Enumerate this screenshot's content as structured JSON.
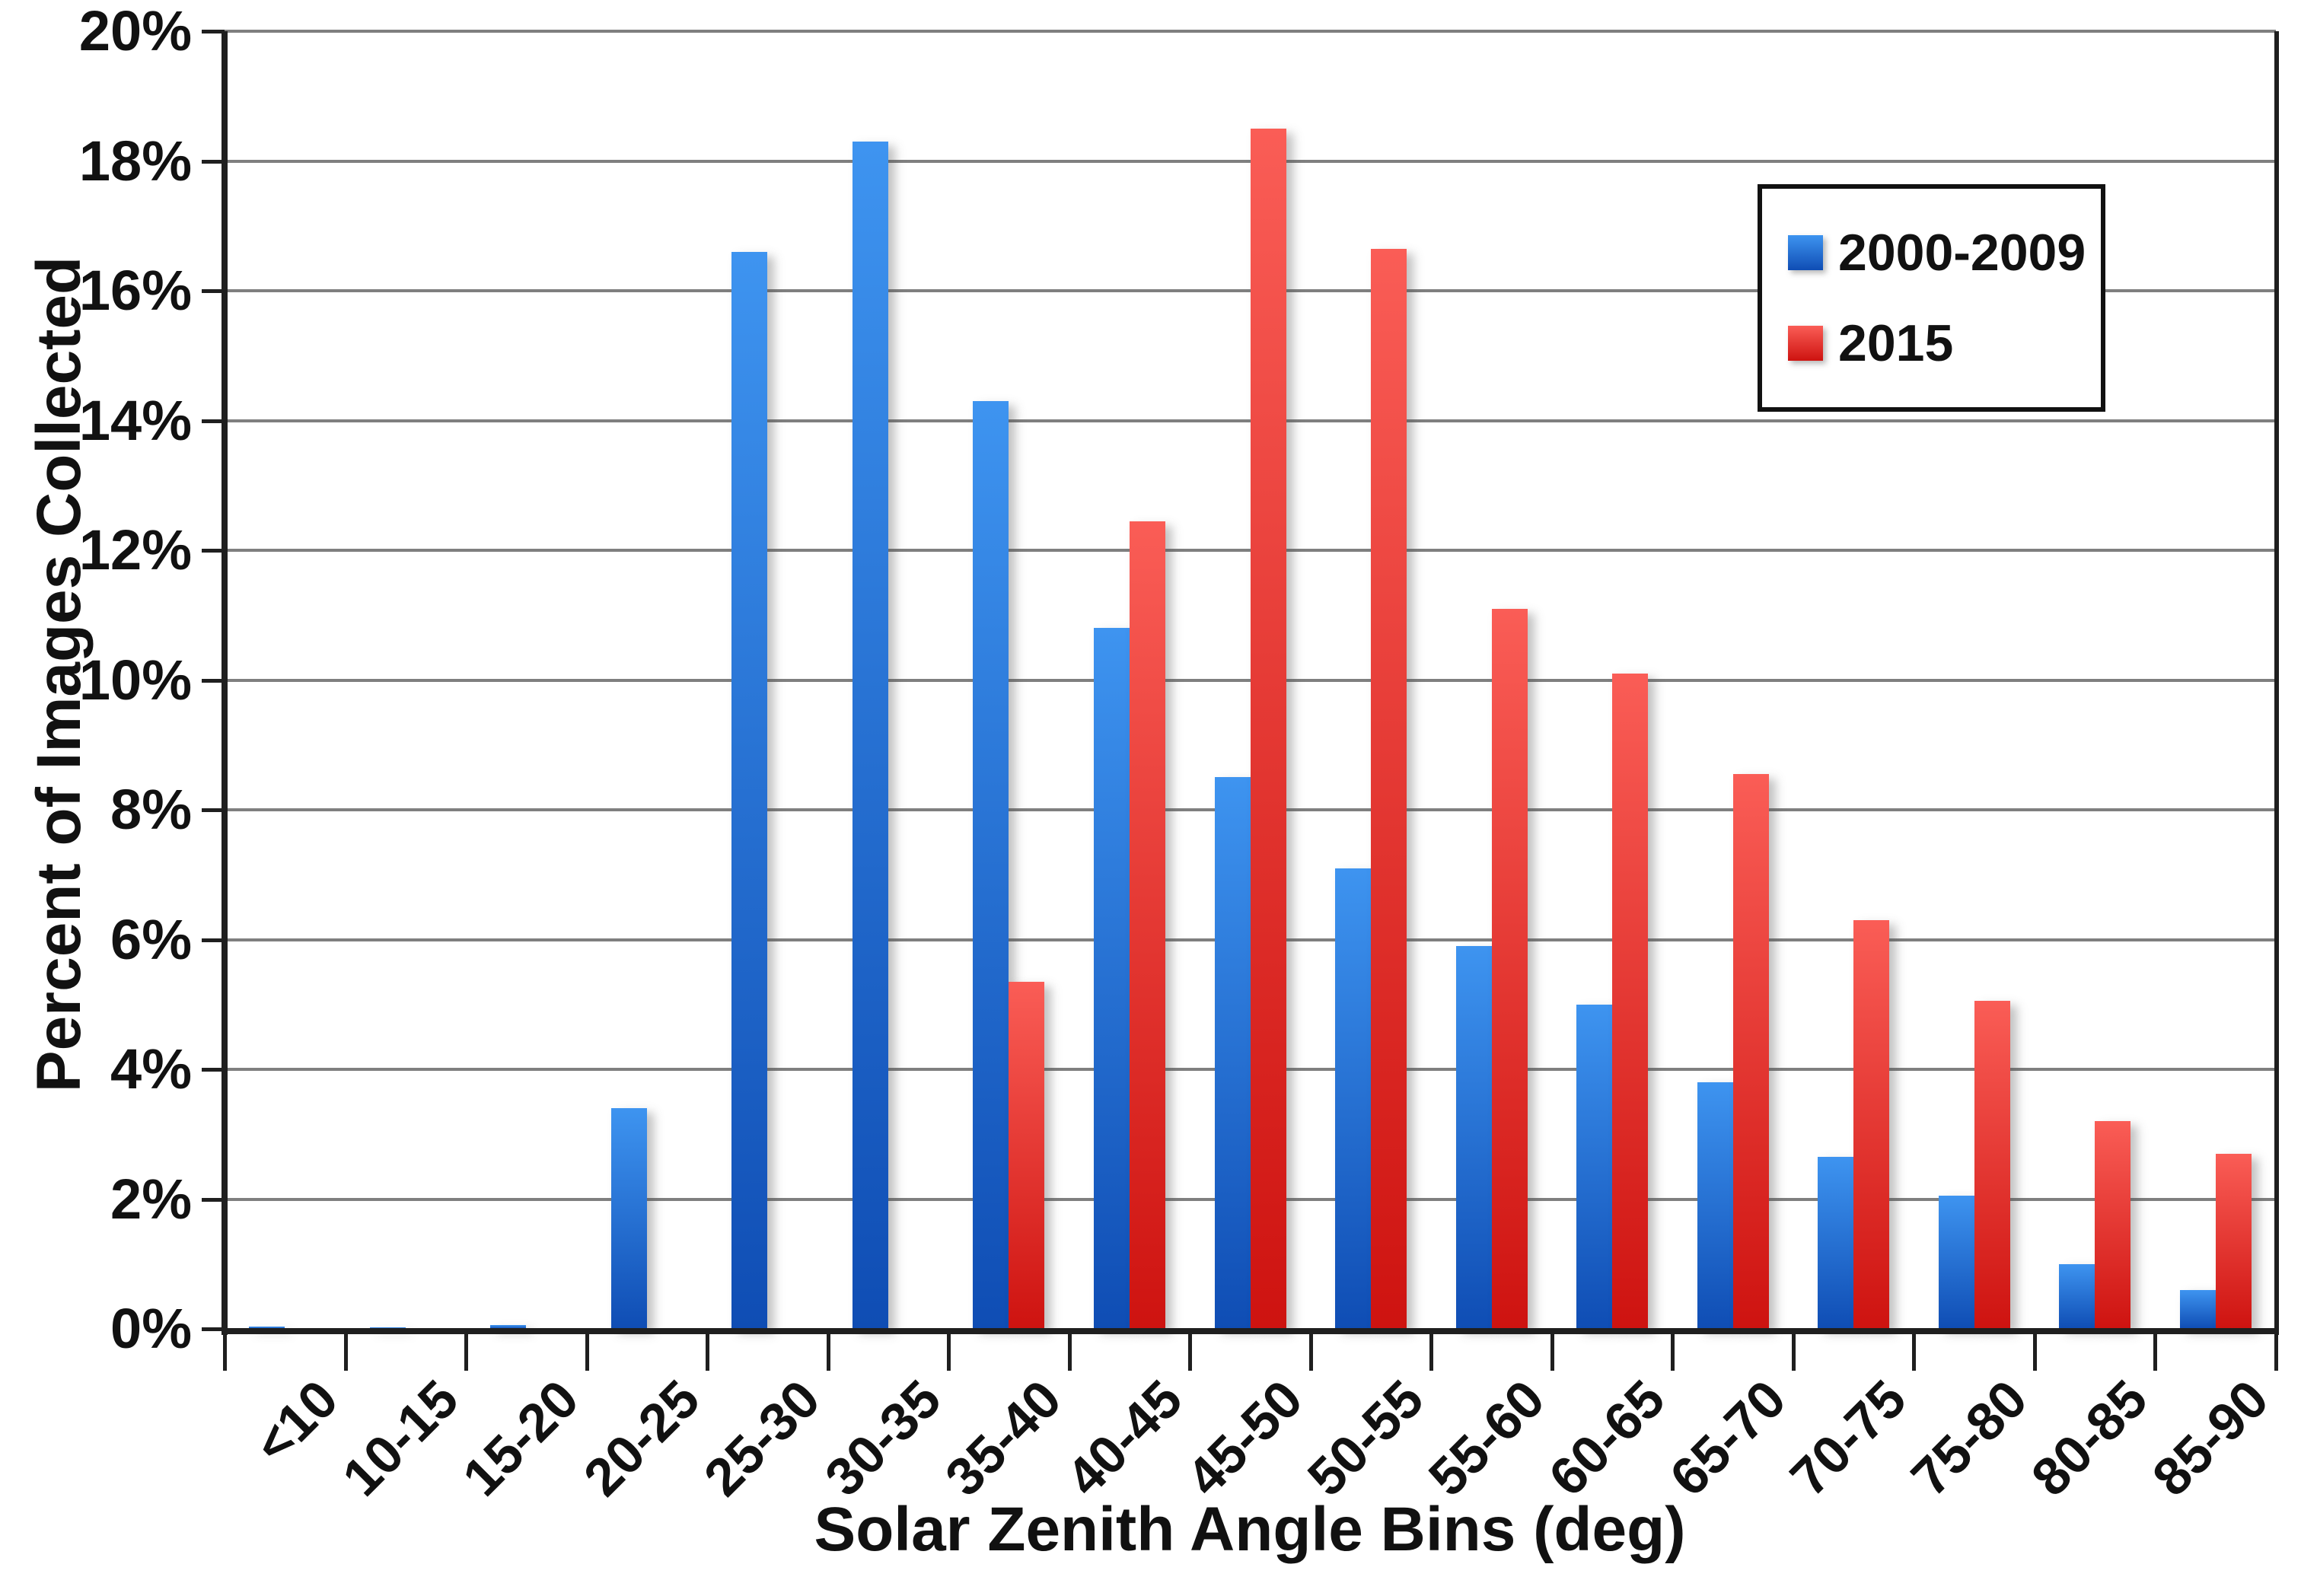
{
  "chart_data": {
    "type": "bar",
    "title": "",
    "xlabel": "Solar Zenith Angle Bins (deg)",
    "ylabel": "Percent of Images Collected",
    "categories": [
      "<10",
      "10-15",
      "15-20",
      "20-25",
      "25-30",
      "30-35",
      "35-40",
      "40-45",
      "45-50",
      "50-55",
      "55-60",
      "60-65",
      "65-70",
      "70-75",
      "75-80",
      "80-85",
      "85-90"
    ],
    "series": [
      {
        "name": "2000-2009",
        "color_top": "#3E94F0",
        "color_bottom": "#0F4DB4",
        "values": [
          0.03,
          0.02,
          0.06,
          3.4,
          16.6,
          18.3,
          14.3,
          10.8,
          8.5,
          7.1,
          5.9,
          5.0,
          3.8,
          2.65,
          2.05,
          1.0,
          0.6
        ]
      },
      {
        "name": "2015",
        "color_top": "#FA5D56",
        "color_bottom": "#CE1310",
        "values": [
          0,
          0,
          0,
          0,
          0,
          0,
          5.35,
          12.45,
          18.5,
          16.65,
          11.1,
          10.1,
          8.55,
          6.3,
          5.05,
          3.2,
          2.7
        ]
      }
    ],
    "ylim": [
      0,
      20
    ],
    "ytick_step": 2,
    "ytick_labels": [
      "0%",
      "2%",
      "4%",
      "6%",
      "8%",
      "10%",
      "12%",
      "14%",
      "16%",
      "18%",
      "20%"
    ],
    "grid": true,
    "legend_position": "top-right",
    "gridline_color": "#7f7f7f",
    "axis_color": "#1f1f1f"
  }
}
